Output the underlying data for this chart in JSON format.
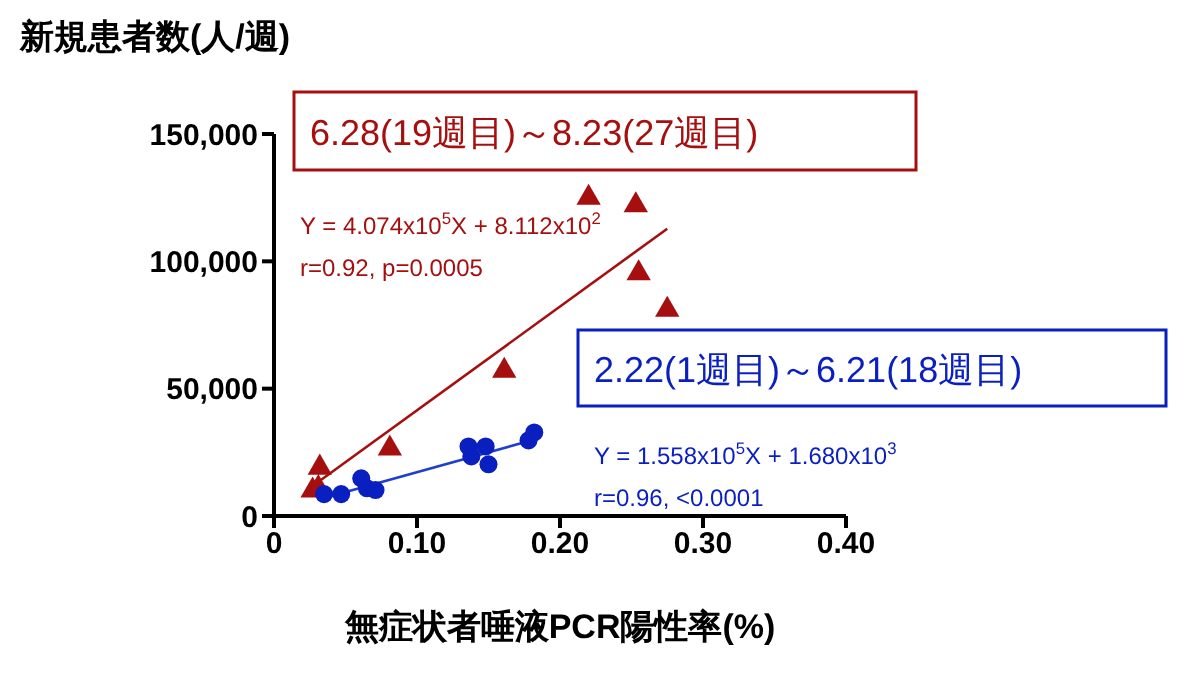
{
  "chart_data": {
    "type": "scatter",
    "ylabel": "新規患者数(人/週)",
    "xlabel": "無症状者唾液PCR陽性率(%)",
    "xlim": [
      0,
      0.4
    ],
    "ylim": [
      0,
      150000
    ],
    "xticks": [
      0,
      {
        "value": 0.1,
        "label": "0.10"
      },
      {
        "value": 0.2,
        "label": "0.20"
      },
      {
        "value": 0.3,
        "label": "0.30"
      },
      {
        "value": 0.4,
        "label": "0.40"
      }
    ],
    "yticks": [
      0,
      {
        "value": 50000,
        "label": "50,000"
      },
      {
        "value": 100000,
        "label": "100,000"
      },
      {
        "value": 150000,
        "label": "150,000"
      }
    ],
    "grid": false,
    "legend": false,
    "series": [
      {
        "name": "6.28(19週目)～8.23(27週目)",
        "marker": "triangle",
        "color": "#a50f0f",
        "x": [
          0.027,
          0.031,
          0.032,
          0.081,
          0.161,
          0.22,
          0.253,
          0.255,
          0.275
        ],
        "values": [
          10000,
          11000,
          19000,
          26500,
          57000,
          125000,
          122000,
          95300,
          81000
        ]
      },
      {
        "name": "2.22(1週目)～6.21(18週目)",
        "marker": "circle",
        "color": "#0a1fbf",
        "x": [
          0.035,
          0.047,
          0.061,
          0.065,
          0.071,
          0.136,
          0.138,
          0.148,
          0.15,
          0.178,
          0.182
        ],
        "values": [
          8600,
          8600,
          14800,
          10900,
          10200,
          27300,
          23400,
          27300,
          20300,
          29700,
          32800
        ]
      },
      {
        "type": "line",
        "color": "#a50f0f",
        "x": [
          0.027,
          0.275
        ],
        "values": [
          11800,
          112800
        ]
      },
      {
        "type": "line",
        "color": "#1f3fcc",
        "x": [
          0.035,
          0.182
        ],
        "values": [
          7100,
          30000
        ]
      }
    ],
    "annotations": [
      "Y = 4.074x10$^{5}$X  + 8.112x10$^{2}$",
      "r=0.92, p=0.0005",
      "Y = 1.558x10$^{5}$X  + 1.680x10$^{3}$",
      "r=0.96, <0.0001"
    ]
  }
}
